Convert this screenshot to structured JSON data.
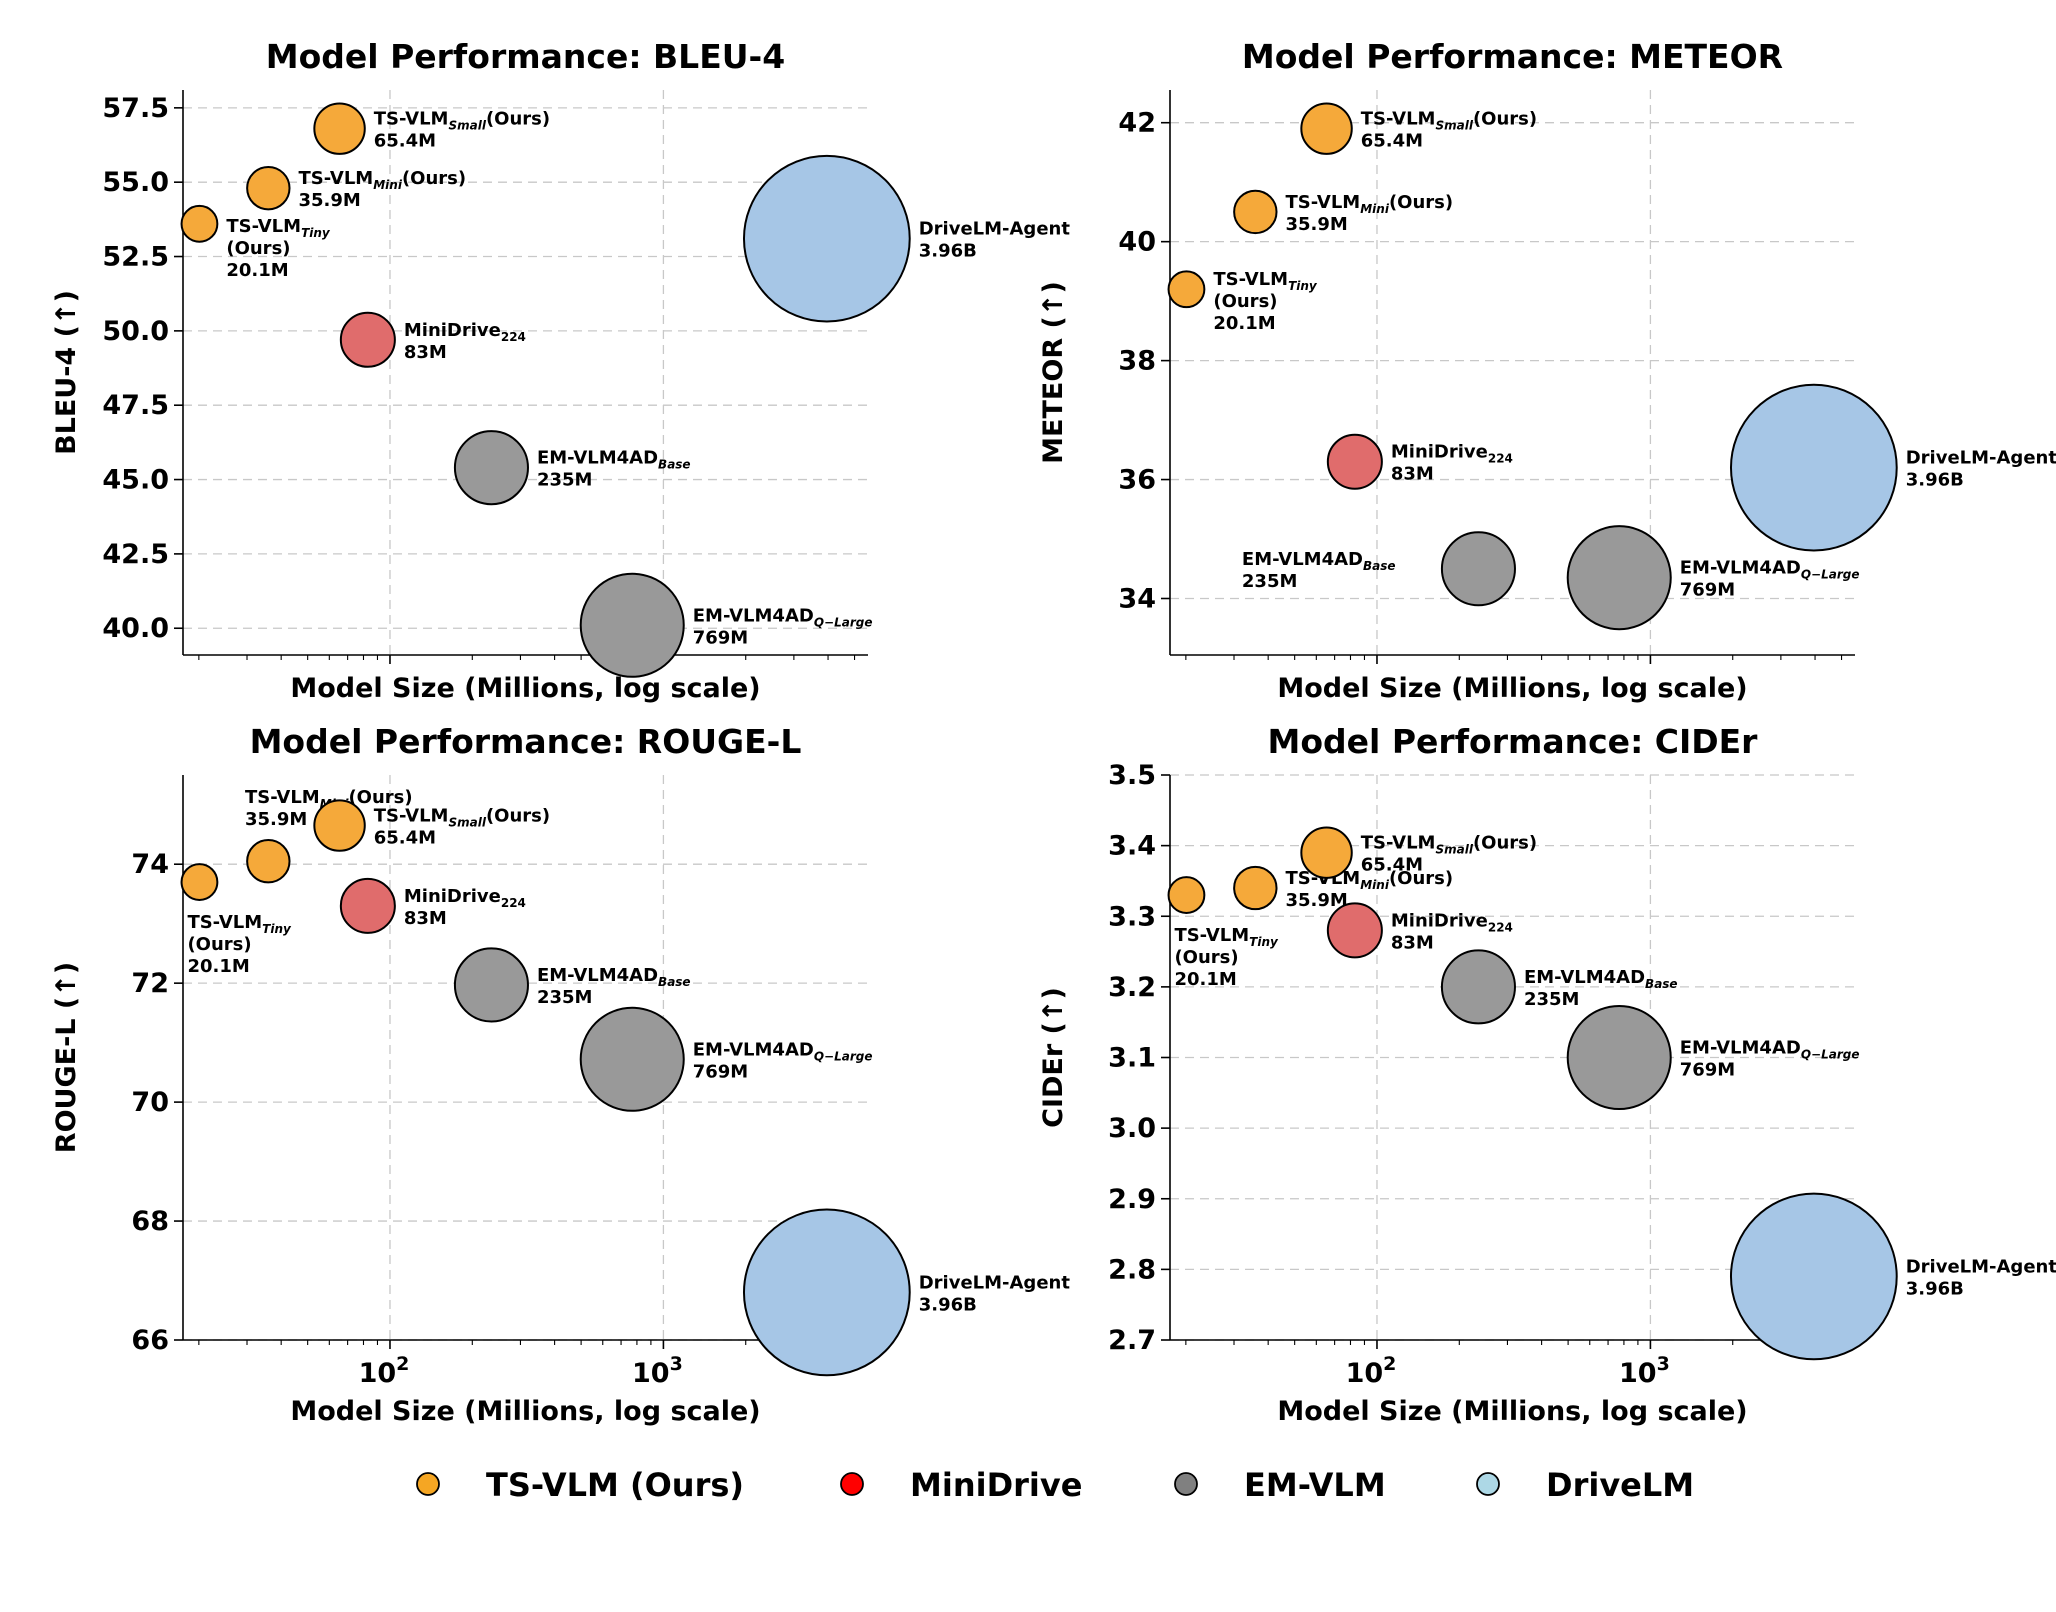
{
  "colors": {
    "ts_vlm_point": "#f5a93a",
    "minidrive_point": "#e06c6c",
    "em_vlm_point": "#999999",
    "drivelm_point": "#a6c6e6",
    "ts_vlm_legend": "#f5a623",
    "minidrive_legend": "#ff0000",
    "em_vlm_legend": "#808080",
    "drivelm_legend": "#add8e6",
    "grid": "#c8c8c8"
  },
  "legend": {
    "items": [
      {
        "label": "TS-VLM (Ours)",
        "color": "#f5a623"
      },
      {
        "label": "MiniDrive",
        "color": "#ff0000"
      },
      {
        "label": "EM-VLM",
        "color": "#808080"
      },
      {
        "label": "DriveLM",
        "color": "#add8e6"
      }
    ]
  },
  "chart_data": [
    {
      "type": "scatter",
      "title": "Model Performance: BLEU-4",
      "xlabel": "Model Size (Millions, log scale)",
      "ylabel": "BLEU-4 (↑)",
      "xscale": "log",
      "xlim": [
        17.5,
        5600
      ],
      "ylim": [
        39.1,
        58.1
      ],
      "yticks": [
        40.0,
        42.5,
        45.0,
        47.5,
        50.0,
        52.5,
        55.0,
        57.5
      ],
      "ytick_labels": [
        "40.0",
        "42.5",
        "45.0",
        "47.5",
        "50.0",
        "52.5",
        "55.0",
        "57.5"
      ],
      "xtick_labels": [],
      "points": [
        {
          "model": "TS-VLM",
          "sub": "Tiny",
          "line2": "(Ours)",
          "size_label": "20.1M",
          "size": 20.1,
          "value": 53.6,
          "group": "ts",
          "anchor": "right-below"
        },
        {
          "model": "TS-VLM",
          "sub": "Mini",
          "suffix": "(Ours)",
          "size_label": "35.9M",
          "size": 35.9,
          "value": 54.8,
          "group": "ts",
          "anchor": "right"
        },
        {
          "model": "TS-VLM",
          "sub": "Small",
          "suffix": "(Ours)",
          "size_label": "65.4M",
          "size": 65.4,
          "value": 56.8,
          "group": "ts",
          "anchor": "right"
        },
        {
          "model": "MiniDrive",
          "sub2": "224",
          "size_label": "83M",
          "size": 83,
          "value": 49.7,
          "group": "minidrive",
          "anchor": "right"
        },
        {
          "model": "EM-VLM4AD",
          "sub": "Base",
          "size_label": "235M",
          "size": 235,
          "value": 45.4,
          "group": "em",
          "anchor": "right"
        },
        {
          "model": "EM-VLM4AD",
          "sub": "Q−Large",
          "size_label": "769M",
          "size": 769,
          "value": 40.1,
          "group": "em",
          "anchor": "right"
        },
        {
          "model": "DriveLM-Agent",
          "size_label": "3.96B",
          "size": 3960,
          "value": 53.1,
          "group": "drivelm",
          "anchor": "right"
        }
      ]
    },
    {
      "type": "scatter",
      "title": "Model Performance: METEOR",
      "xlabel": "Model Size (Millions, log scale)",
      "ylabel": "METEOR (↑)",
      "xscale": "log",
      "xlim": [
        17.5,
        5600
      ],
      "ylim": [
        33.05,
        42.55
      ],
      "yticks": [
        34,
        36,
        38,
        40,
        42
      ],
      "ytick_labels": [
        "34",
        "36",
        "38",
        "40",
        "42"
      ],
      "xtick_labels": [],
      "points": [
        {
          "model": "TS-VLM",
          "sub": "Tiny",
          "line2": "(Ours)",
          "size_label": "20.1M",
          "size": 20.1,
          "value": 39.2,
          "group": "ts",
          "anchor": "right"
        },
        {
          "model": "TS-VLM",
          "sub": "Mini",
          "suffix": "(Ours)",
          "size_label": "35.9M",
          "size": 35.9,
          "value": 40.5,
          "group": "ts",
          "anchor": "right"
        },
        {
          "model": "TS-VLM",
          "sub": "Small",
          "suffix": "(Ours)",
          "size_label": "65.4M",
          "size": 65.4,
          "value": 41.9,
          "group": "ts",
          "anchor": "right"
        },
        {
          "model": "MiniDrive",
          "sub2": "224",
          "size_label": "83M",
          "size": 83,
          "value": 36.3,
          "group": "minidrive",
          "anchor": "right"
        },
        {
          "model": "EM-VLM4AD",
          "sub": "Base",
          "size_label": "235M",
          "size": 235,
          "value": 34.5,
          "group": "em",
          "anchor": "left"
        },
        {
          "model": "EM-VLM4AD",
          "sub": "Q−Large",
          "size_label": "769M",
          "size": 769,
          "value": 34.35,
          "group": "em",
          "anchor": "right"
        },
        {
          "model": "DriveLM-Agent",
          "size_label": "3.96B",
          "size": 3960,
          "value": 36.2,
          "group": "drivelm",
          "anchor": "right"
        }
      ]
    },
    {
      "type": "scatter",
      "title": "Model Performance: ROUGE-L",
      "xlabel": "Model Size (Millions, log scale)",
      "ylabel": "ROUGE-L (↑)",
      "xscale": "log",
      "xlim": [
        17.5,
        5600
      ],
      "ylim": [
        66.0,
        75.5
      ],
      "yticks": [
        66,
        68,
        70,
        72,
        74
      ],
      "ytick_labels": [
        "66",
        "68",
        "70",
        "72",
        "74"
      ],
      "xticks": [
        100,
        1000
      ],
      "xtick_labels": [
        "10^2",
        "10^3"
      ],
      "points": [
        {
          "model": "TS-VLM",
          "sub": "Tiny",
          "line2": "(Ours)",
          "size_label": "20.1M",
          "size": 20.1,
          "value": 73.7,
          "group": "ts",
          "anchor": "below"
        },
        {
          "model": "TS-VLM",
          "sub": "Mini",
          "suffix": "(Ours)",
          "size_label": "35.9M",
          "size": 35.9,
          "value": 74.05,
          "group": "ts",
          "anchor": "above-left"
        },
        {
          "model": "TS-VLM",
          "sub": "Small",
          "suffix": "(Ours)",
          "size_label": "65.4M",
          "size": 65.4,
          "value": 74.65,
          "group": "ts",
          "anchor": "right"
        },
        {
          "model": "MiniDrive",
          "sub2": "224",
          "size_label": "83M",
          "size": 83,
          "value": 73.3,
          "group": "minidrive",
          "anchor": "right"
        },
        {
          "model": "EM-VLM4AD",
          "sub": "Base",
          "size_label": "235M",
          "size": 235,
          "value": 71.97,
          "group": "em",
          "anchor": "right"
        },
        {
          "model": "EM-VLM4AD",
          "sub": "Q−Large",
          "size_label": "769M",
          "size": 769,
          "value": 70.72,
          "group": "em",
          "anchor": "right"
        },
        {
          "model": "DriveLM-Agent",
          "size_label": "3.96B",
          "size": 3960,
          "value": 66.8,
          "group": "drivelm",
          "anchor": "right"
        }
      ]
    },
    {
      "type": "scatter",
      "title": "Model Performance: CIDEr",
      "xlabel": "Model Size (Millions, log scale)",
      "ylabel": "CIDEr (↑)",
      "xscale": "log",
      "xlim": [
        17.5,
        5600
      ],
      "ylim": [
        2.7,
        3.5
      ],
      "yticks": [
        2.7,
        2.8,
        2.9,
        3.0,
        3.1,
        3.2,
        3.3,
        3.4,
        3.5
      ],
      "ytick_labels": [
        "2.7",
        "2.8",
        "2.9",
        "3.0",
        "3.1",
        "3.2",
        "3.3",
        "3.4",
        "3.5"
      ],
      "xticks": [
        100,
        1000
      ],
      "xtick_labels": [
        "10^2",
        "10^3"
      ],
      "points": [
        {
          "model": "TS-VLM",
          "sub": "Tiny",
          "line2": "(Ours)",
          "size_label": "20.1M",
          "size": 20.1,
          "value": 3.33,
          "group": "ts",
          "anchor": "below"
        },
        {
          "model": "TS-VLM",
          "sub": "Mini",
          "suffix": "(Ours)",
          "size_label": "35.9M",
          "size": 35.9,
          "value": 3.34,
          "group": "ts",
          "anchor": "right"
        },
        {
          "model": "TS-VLM",
          "sub": "Small",
          "suffix": "(Ours)",
          "size_label": "65.4M",
          "size": 65.4,
          "value": 3.39,
          "group": "ts",
          "anchor": "right"
        },
        {
          "model": "MiniDrive",
          "sub2": "224",
          "size_label": "83M",
          "size": 83,
          "value": 3.28,
          "group": "minidrive",
          "anchor": "right"
        },
        {
          "model": "EM-VLM4AD",
          "sub": "Base",
          "size_label": "235M",
          "size": 235,
          "value": 3.2,
          "group": "em",
          "anchor": "right"
        },
        {
          "model": "EM-VLM4AD",
          "sub": "Q−Large",
          "size_label": "769M",
          "size": 769,
          "value": 3.1,
          "group": "em",
          "anchor": "right"
        },
        {
          "model": "DriveLM-Agent",
          "size_label": "3.96B",
          "size": 3960,
          "value": 2.79,
          "group": "drivelm",
          "anchor": "right"
        }
      ]
    }
  ]
}
